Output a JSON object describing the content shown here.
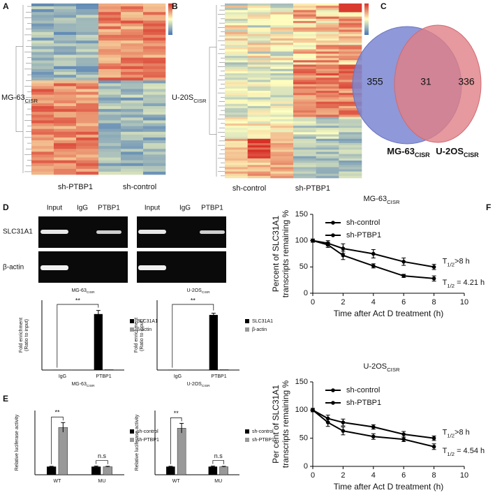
{
  "panels": {
    "A": {
      "label": "A",
      "row_label": {
        "text": "MG-63",
        "sub": "CISR"
      },
      "columns": [
        "sh-PTBP1",
        "sh-control"
      ]
    },
    "B": {
      "label": "B",
      "row_label": {
        "text": "U-20S",
        "sub": "CISR"
      },
      "columns": [
        "sh-control",
        "sh-PTBP1"
      ]
    },
    "C": {
      "label": "C",
      "type": "venn",
      "values": [
        355,
        31,
        336
      ],
      "sets": [
        {
          "text": "MG-63",
          "sub": "CISR"
        },
        {
          "text": "U-2OS",
          "sub": "CISR"
        }
      ],
      "colors": [
        "#7b86d1",
        "#e07f86"
      ]
    },
    "D": {
      "label": "D",
      "gel": {
        "lanes": [
          "Input",
          "IgG",
          "PTBP1"
        ],
        "rows": [
          "SLC31A1",
          "β-actin"
        ]
      },
      "charts": [
        {
          "type": "bar",
          "title": {
            "text": "MG-63",
            "sub": "CISR"
          },
          "xlabel": {
            "text": "MG-63",
            "sub": "CISR"
          },
          "ylabel": [
            "Fold enrichment",
            "(Ratio to input)"
          ],
          "categories": [
            "IgG",
            "PTBP1"
          ],
          "ylim": [
            0,
            150
          ],
          "series": [
            {
              "name": "SLC31A1",
              "color": "#000000",
              "values": [
                0.5,
                120
              ],
              "errors": [
                0,
                8
              ]
            },
            {
              "name": "β-actin",
              "color": "#999999",
              "values": [
                0.5,
                1
              ],
              "errors": [
                0,
                0
              ]
            }
          ],
          "significance": [
            "**"
          ]
        },
        {
          "type": "bar",
          "title": {
            "text": "U-2OS",
            "sub": "CISR"
          },
          "xlabel": {
            "text": "U-2OS",
            "sub": "CISR"
          },
          "ylabel": [
            "Fold enrichment",
            "(Ratio to input)"
          ],
          "categories": [
            "IgG",
            "PTBP1"
          ],
          "ylim": [
            0,
            150
          ],
          "series": [
            {
              "name": "SLC31A1",
              "color": "#000000",
              "values": [
                0.5,
                118
              ],
              "errors": [
                0,
                4
              ]
            },
            {
              "name": "β-actin",
              "color": "#999999",
              "values": [
                0.5,
                1
              ],
              "errors": [
                0,
                0
              ]
            }
          ],
          "significance": [
            "**"
          ]
        }
      ]
    },
    "E": {
      "label": "E",
      "charts": [
        {
          "type": "bar",
          "ylabel": [
            "Relative luciferase activity"
          ],
          "categories": [
            "WT",
            "MU"
          ],
          "ylim": [
            0,
            8
          ],
          "series": [
            {
              "name": "sh-control",
              "color": "#000000",
              "values": [
                1,
                1
              ],
              "errors": [
                0.05,
                0.08
              ]
            },
            {
              "name": "sh-PTBP1",
              "color": "#999999",
              "values": [
                5.9,
                1
              ],
              "errors": [
                0.6,
                0.05
              ]
            }
          ],
          "significance": [
            "**",
            "n.s"
          ]
        },
        {
          "type": "bar",
          "ylabel": [
            "Relative luciferase activity"
          ],
          "categories": [
            "WT",
            "MU"
          ],
          "ylim": [
            0,
            8
          ],
          "series": [
            {
              "name": "sh-control",
              "color": "#000000",
              "values": [
                1,
                1
              ],
              "errors": [
                0.05,
                0.08
              ]
            },
            {
              "name": "sh-PTBP1",
              "color": "#999999",
              "values": [
                5.8,
                1
              ],
              "errors": [
                0.6,
                0.05
              ]
            }
          ],
          "significance": [
            "**",
            "n.s"
          ]
        }
      ]
    },
    "F": {
      "label": "F",
      "charts": [
        {
          "type": "line",
          "title": {
            "text": "MG-63",
            "sub": "CISR"
          },
          "x": [
            0,
            1,
            2,
            4,
            6,
            8
          ],
          "xlim": [
            0,
            10
          ],
          "xticks": [
            0,
            2,
            4,
            6,
            8,
            10
          ],
          "ylim": [
            0,
            150
          ],
          "yticks": [
            0,
            50,
            100,
            150
          ],
          "xlabel": "Time after Act D treatment (h)",
          "ylabel": [
            "Percent of SLC31A1",
            "transcripts remaining %"
          ],
          "series": [
            {
              "name": "sh-control",
              "color": "#000000",
              "values": [
                100,
                95,
                85,
                75,
                60,
                50
              ],
              "errors": [
                3,
                5,
                9,
                8,
                7,
                5
              ],
              "annotation": {
                "text": "T",
                "sub": "1/2",
                "rest": ">8 h"
              }
            },
            {
              "name": "sh-PTBP1",
              "color": "#000000",
              "values": [
                100,
                92,
                72,
                52,
                33,
                28
              ],
              "errors": [
                3,
                5,
                8,
                4,
                3,
                5
              ],
              "annotation": {
                "text": "T",
                "sub": "1/2",
                "rest": " = 4.21 h"
              }
            }
          ]
        },
        {
          "type": "line",
          "title": {
            "text": "U-2OS",
            "sub": "CISR"
          },
          "x": [
            0,
            1,
            2,
            4,
            6,
            8
          ],
          "xlim": [
            0,
            10
          ],
          "xticks": [
            0,
            2,
            4,
            6,
            8,
            10
          ],
          "ylim": [
            0,
            150
          ],
          "yticks": [
            0,
            50,
            100,
            150
          ],
          "xlabel": "Time after Act D treatment (h)",
          "ylabel": [
            "Per cent of SLC31A1",
            "transcripts remaining %"
          ],
          "series": [
            {
              "name": "sh-control",
              "color": "#000000",
              "values": [
                100,
                85,
                78,
                70,
                57,
                50
              ],
              "errors": [
                3,
                6,
                6,
                4,
                5,
                4
              ],
              "annotation": {
                "text": "T",
                "sub": "1/2",
                "rest": ">8 h"
              }
            },
            {
              "name": "sh-PTBP1",
              "color": "#000000",
              "values": [
                100,
                78,
                63,
                53,
                48,
                35
              ],
              "errors": [
                3,
                7,
                7,
                5,
                4,
                5
              ],
              "annotation": {
                "text": "T",
                "sub": "1/2",
                "rest": " = 4.54 h"
              }
            }
          ]
        }
      ]
    }
  }
}
